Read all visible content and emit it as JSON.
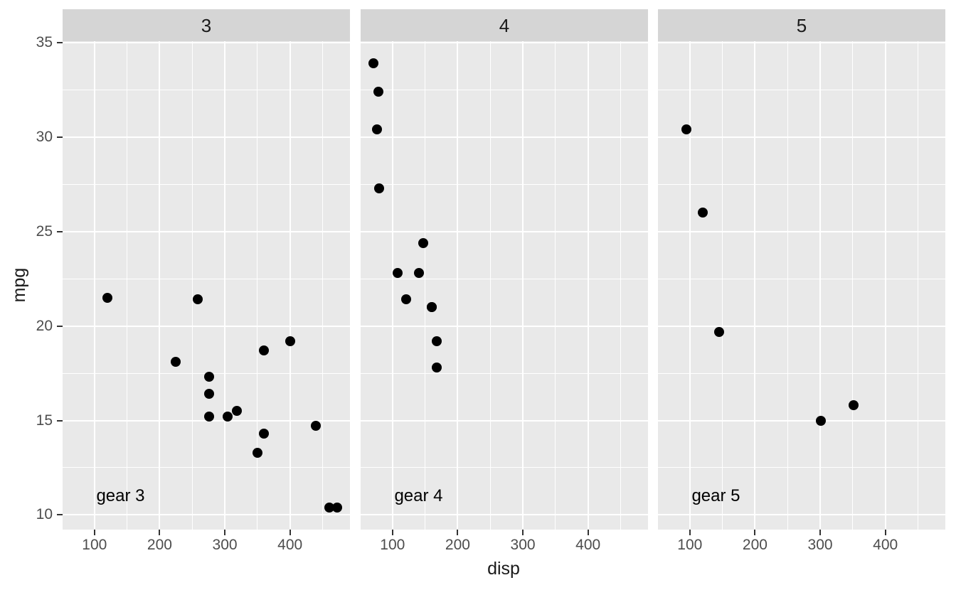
{
  "chart_data": {
    "type": "scatter",
    "title": "",
    "xlabel": "disp",
    "ylabel": "mpg",
    "grid": "on",
    "legend": "none",
    "xlim": [
      51.1,
      492.0
    ],
    "ylim": [
      9.225,
      35.075
    ],
    "x_ticks": [
      100,
      200,
      300,
      400
    ],
    "y_ticks": [
      10,
      15,
      20,
      25,
      30,
      35
    ],
    "x_minor_ticks": [
      150,
      250,
      350,
      450
    ],
    "y_minor_ticks": [
      12.5,
      17.5,
      22.5,
      27.5,
      32.5
    ],
    "facets": [
      {
        "strip_label": "3",
        "annotation": {
          "text": "gear 3",
          "x": 140,
          "y": 11
        },
        "points": [
          {
            "x": 120.1,
            "y": 21.5
          },
          {
            "x": 258.0,
            "y": 21.4
          },
          {
            "x": 225.0,
            "y": 18.1
          },
          {
            "x": 360.0,
            "y": 18.7
          },
          {
            "x": 400.0,
            "y": 19.2
          },
          {
            "x": 275.8,
            "y": 17.3
          },
          {
            "x": 275.8,
            "y": 16.4
          },
          {
            "x": 275.8,
            "y": 15.2
          },
          {
            "x": 304.0,
            "y": 15.2
          },
          {
            "x": 318.0,
            "y": 15.5
          },
          {
            "x": 360.0,
            "y": 14.3
          },
          {
            "x": 350.0,
            "y": 13.3
          },
          {
            "x": 440.0,
            "y": 14.7
          },
          {
            "x": 460.0,
            "y": 10.4
          },
          {
            "x": 472.0,
            "y": 10.4
          }
        ]
      },
      {
        "strip_label": "4",
        "annotation": {
          "text": "gear 4",
          "x": 140,
          "y": 11
        },
        "points": [
          {
            "x": 71.1,
            "y": 33.9
          },
          {
            "x": 78.7,
            "y": 32.4
          },
          {
            "x": 75.7,
            "y": 30.4
          },
          {
            "x": 79.0,
            "y": 27.3
          },
          {
            "x": 146.7,
            "y": 24.4
          },
          {
            "x": 108.0,
            "y": 22.8
          },
          {
            "x": 140.8,
            "y": 22.8
          },
          {
            "x": 121.0,
            "y": 21.4
          },
          {
            "x": 160.0,
            "y": 21.0
          },
          {
            "x": 160.0,
            "y": 21.0
          },
          {
            "x": 167.6,
            "y": 19.2
          },
          {
            "x": 167.6,
            "y": 17.8
          }
        ]
      },
      {
        "strip_label": "5",
        "annotation": {
          "text": "gear 5",
          "x": 140,
          "y": 11
        },
        "points": [
          {
            "x": 95.1,
            "y": 30.4
          },
          {
            "x": 120.3,
            "y": 26.0
          },
          {
            "x": 145.0,
            "y": 19.7
          },
          {
            "x": 301.0,
            "y": 15.0
          },
          {
            "x": 351.0,
            "y": 15.8
          }
        ]
      }
    ],
    "colors": {
      "panel_bg": "#e9e9e9",
      "strip_bg": "#d5d5d5",
      "gridline": "#ffffff",
      "point": "#000000",
      "tick_mark": "#333333",
      "tick_label": "#4d4d4d",
      "axis_title": "#1a1a1a",
      "strip_label": "#1a1a1a",
      "annotation": "#000000"
    }
  }
}
